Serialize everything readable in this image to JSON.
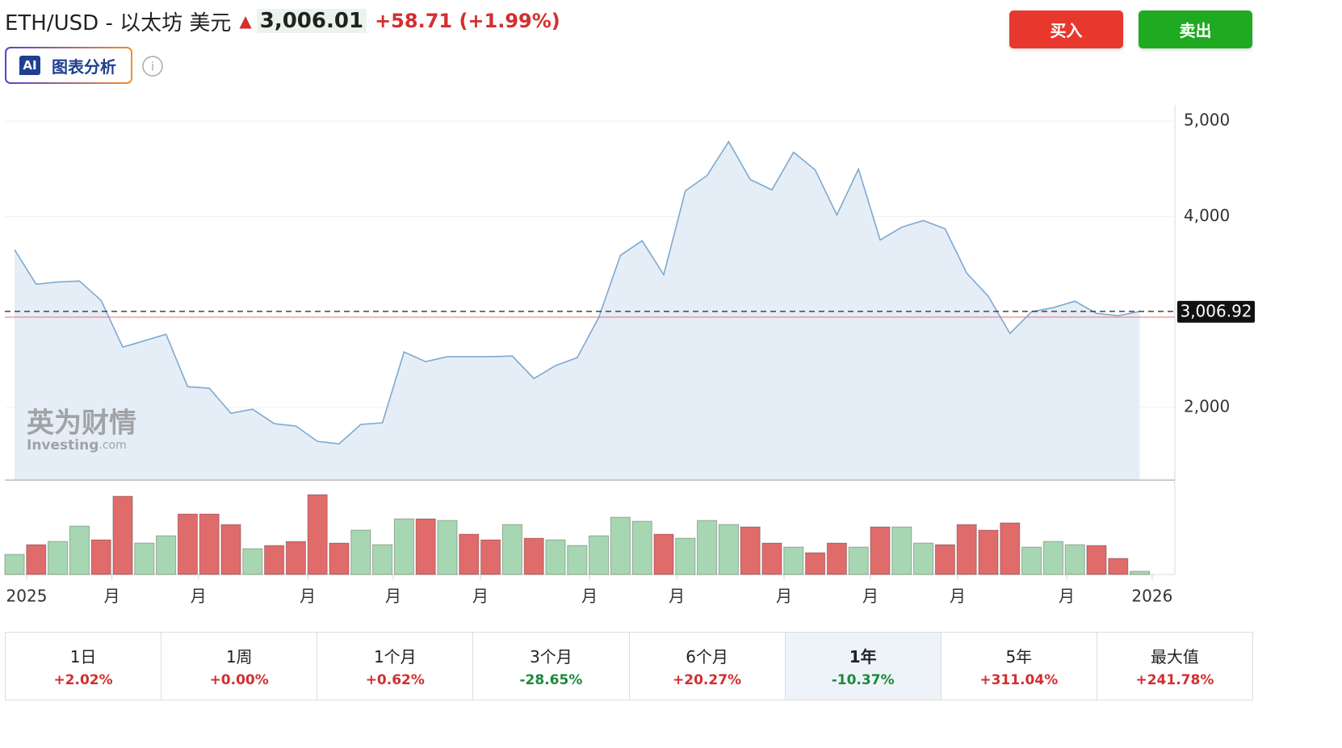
{
  "header": {
    "symbol": "ETH/USD - 以太坊 美元",
    "price": "3,006.01",
    "change": "+58.71 (+1.99%)"
  },
  "ai_badge": "AI",
  "ai_button": "图表分析",
  "buttons": {
    "buy": "买入",
    "sell": "卖出"
  },
  "watermark": {
    "cn": "英为财情",
    "en": "Investing",
    "en_suffix": ".com"
  },
  "chart_data": {
    "type": "line",
    "values": [
      3654,
      3291,
      3316,
      3325,
      3122,
      2633,
      2700,
      2768,
      2219,
      2203,
      1941,
      1983,
      1831,
      1806,
      1646,
      1620,
      1823,
      1840,
      2582,
      2481,
      2532,
      2532,
      2532,
      2540,
      2304,
      2439,
      2523,
      2945,
      3595,
      3747,
      3392,
      4270,
      4430,
      4785,
      4388,
      4279,
      4675,
      4489,
      4017,
      4498,
      3755,
      3890,
      3958,
      3873,
      3409,
      3165,
      2776,
      3004,
      3046,
      3114,
      2987,
      2962,
      3006
    ],
    "color": "#7ea9d1",
    "fill": "#e5eef7",
    "ylim": [
      1240,
      5170
    ],
    "yticks": [
      {
        "value": 2000,
        "label": "2,000"
      },
      {
        "value": 4000,
        "label": "4,000"
      },
      {
        "value": 5000,
        "label": "5,000"
      }
    ],
    "grid": true,
    "xlim": [
      -0.5,
      52.5
    ],
    "xticks": [
      {
        "value": 0.56,
        "label": "2025"
      },
      {
        "value": 4.5,
        "label": "月"
      },
      {
        "value": 8.5,
        "label": "月"
      },
      {
        "value": 13.55,
        "label": "月"
      },
      {
        "value": 17.5,
        "label": "月"
      },
      {
        "value": 21.53,
        "label": "月"
      },
      {
        "value": 26.57,
        "label": "月"
      },
      {
        "value": 30.6,
        "label": "月"
      },
      {
        "value": 35.56,
        "label": "月"
      },
      {
        "value": 39.55,
        "label": "月"
      },
      {
        "value": 43.58,
        "label": "月"
      },
      {
        "value": 48.62,
        "label": "月"
      },
      {
        "value": 52.57,
        "label": "2026"
      }
    ],
    "last_price": {
      "value": 3006.92,
      "label": "3,006.92"
    },
    "prev_close": 2947.3,
    "prev_close_color": "#e57373",
    "volume": {
      "ylim": [
        0,
        114
      ],
      "values": [
        25,
        37,
        41,
        60,
        43,
        97,
        39,
        48,
        75,
        75,
        62,
        32,
        36,
        41,
        99,
        39,
        55,
        37,
        69,
        69,
        67,
        50,
        43,
        62,
        45,
        43,
        36,
        48,
        71,
        66,
        50,
        45,
        67,
        62,
        59,
        39,
        34,
        27,
        39,
        34,
        59,
        59,
        39,
        37,
        62,
        55,
        64,
        34,
        41,
        37,
        36,
        20,
        4
      ],
      "colors": [
        "#a7d7b2",
        "#e06b6b",
        "#a7d7b2",
        "#a7d7b2",
        "#e06b6b",
        "#e06b6b",
        "#a7d7b2",
        "#a7d7b2",
        "#e06b6b",
        "#e06b6b",
        "#e06b6b",
        "#a7d7b2",
        "#e06b6b",
        "#e06b6b",
        "#e06b6b",
        "#e06b6b",
        "#a7d7b2",
        "#a7d7b2",
        "#a7d7b2",
        "#e06b6b",
        "#a7d7b2",
        "#e06b6b",
        "#e06b6b",
        "#a7d7b2",
        "#e06b6b",
        "#a7d7b2",
        "#a7d7b2",
        "#a7d7b2",
        "#a7d7b2",
        "#a7d7b2",
        "#e06b6b",
        "#a7d7b2",
        "#a7d7b2",
        "#a7d7b2",
        "#e06b6b",
        "#e06b6b",
        "#a7d7b2",
        "#e06b6b",
        "#e06b6b",
        "#a7d7b2",
        "#e06b6b",
        "#a7d7b2",
        "#a7d7b2",
        "#e06b6b",
        "#e06b6b",
        "#e06b6b",
        "#e06b6b",
        "#a7d7b2",
        "#a7d7b2",
        "#a7d7b2",
        "#e06b6b",
        "#e06b6b",
        "#a7d7b2"
      ]
    }
  },
  "periods": [
    {
      "label": "1日",
      "change": "+2.02%",
      "color": "#d32f2f"
    },
    {
      "label": "1周",
      "change": "+0.00%",
      "color": "#d32f2f"
    },
    {
      "label": "1个月",
      "change": "+0.62%",
      "color": "#d32f2f"
    },
    {
      "label": "3个月",
      "change": "-28.65%",
      "color": "#1b8a3a"
    },
    {
      "label": "6个月",
      "change": "+20.27%",
      "color": "#d32f2f"
    },
    {
      "label": "1年",
      "change": "-10.37%",
      "color": "#1b8a3a"
    },
    {
      "label": "5年",
      "change": "+311.04%",
      "color": "#d32f2f"
    },
    {
      "label": "最大值",
      "change": "+241.78%",
      "color": "#d32f2f"
    }
  ],
  "selected_period": 5
}
